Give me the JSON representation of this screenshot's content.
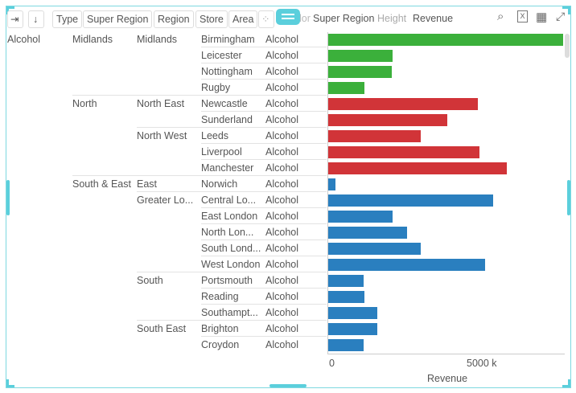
{
  "toolbar": {
    "chips": [
      "Type",
      "Super Region",
      "Region",
      "Store",
      "Area"
    ],
    "color_label": "Color",
    "color_value": "Super Region",
    "height_label": "Height",
    "height_value": "Revenue",
    "icons": [
      "add-column-icon",
      "sort-icon",
      "scatter-add-icon",
      "search-icon",
      "excel-icon",
      "table-icon",
      "expand-icon"
    ]
  },
  "colors": {
    "Midlands": "#3bb03b",
    "North": "#d13438",
    "South & East": "#2a7fbf"
  },
  "chart_data": {
    "type": "bar",
    "orientation": "horizontal",
    "xlabel": "Revenue",
    "ticks": [
      "0",
      "5000 k"
    ],
    "color_by": "Super Region",
    "rows": [
      {
        "type": "Alcohol",
        "super_region": "Midlands",
        "region": "Midlands",
        "store": "Birmingham",
        "area": "Alcohol",
        "value": 7680
      },
      {
        "type": "",
        "super_region": "",
        "region": "",
        "store": "Leicester",
        "area": "Alcohol",
        "value": 2100
      },
      {
        "type": "",
        "super_region": "",
        "region": "",
        "store": "Nottingham",
        "area": "Alcohol",
        "value": 2080
      },
      {
        "type": "",
        "super_region": "",
        "region": "",
        "store": "Rugby",
        "area": "Alcohol",
        "value": 1180
      },
      {
        "type": "",
        "super_region": "North",
        "region": "North East",
        "store": "Newcastle",
        "area": "Alcohol",
        "value": 4890
      },
      {
        "type": "",
        "super_region": "",
        "region": "",
        "store": "Sunderland",
        "area": "Alcohol",
        "value": 3890
      },
      {
        "type": "",
        "super_region": "",
        "region": "North West",
        "store": "Leeds",
        "area": "Alcohol",
        "value": 3030
      },
      {
        "type": "",
        "super_region": "",
        "region": "",
        "store": "Liverpool",
        "area": "Alcohol",
        "value": 4950
      },
      {
        "type": "",
        "super_region": "",
        "region": "",
        "store": "Manchester",
        "area": "Alcohol",
        "value": 5840
      },
      {
        "type": "",
        "super_region": "South & East",
        "region": "East",
        "store": "Norwich",
        "area": "Alcohol",
        "value": 240
      },
      {
        "type": "",
        "super_region": "",
        "region": "Greater Lo...",
        "store": "Central Lo...",
        "area": "Alcohol",
        "value": 5390
      },
      {
        "type": "",
        "super_region": "",
        "region": "",
        "store": "East London",
        "area": "Alcohol",
        "value": 2100
      },
      {
        "type": "",
        "super_region": "",
        "region": "",
        "store": "North Lon...",
        "area": "Alcohol",
        "value": 2580
      },
      {
        "type": "",
        "super_region": "",
        "region": "",
        "store": "South Lond...",
        "area": "Alcohol",
        "value": 3030
      },
      {
        "type": "",
        "super_region": "",
        "region": "",
        "store": "West London",
        "area": "Alcohol",
        "value": 5130
      },
      {
        "type": "",
        "super_region": "",
        "region": "South",
        "store": "Portsmouth",
        "area": "Alcohol",
        "value": 1160
      },
      {
        "type": "",
        "super_region": "",
        "region": "",
        "store": "Reading",
        "area": "Alcohol",
        "value": 1180
      },
      {
        "type": "",
        "super_region": "",
        "region": "",
        "store": "Southampt...",
        "area": "Alcohol",
        "value": 1600
      },
      {
        "type": "",
        "super_region": "",
        "region": "South East",
        "store": "Brighton",
        "area": "Alcohol",
        "value": 1600
      },
      {
        "type": "",
        "super_region": "",
        "region": "",
        "store": "Croydon",
        "area": "Alcohol",
        "value": 1160
      }
    ]
  }
}
